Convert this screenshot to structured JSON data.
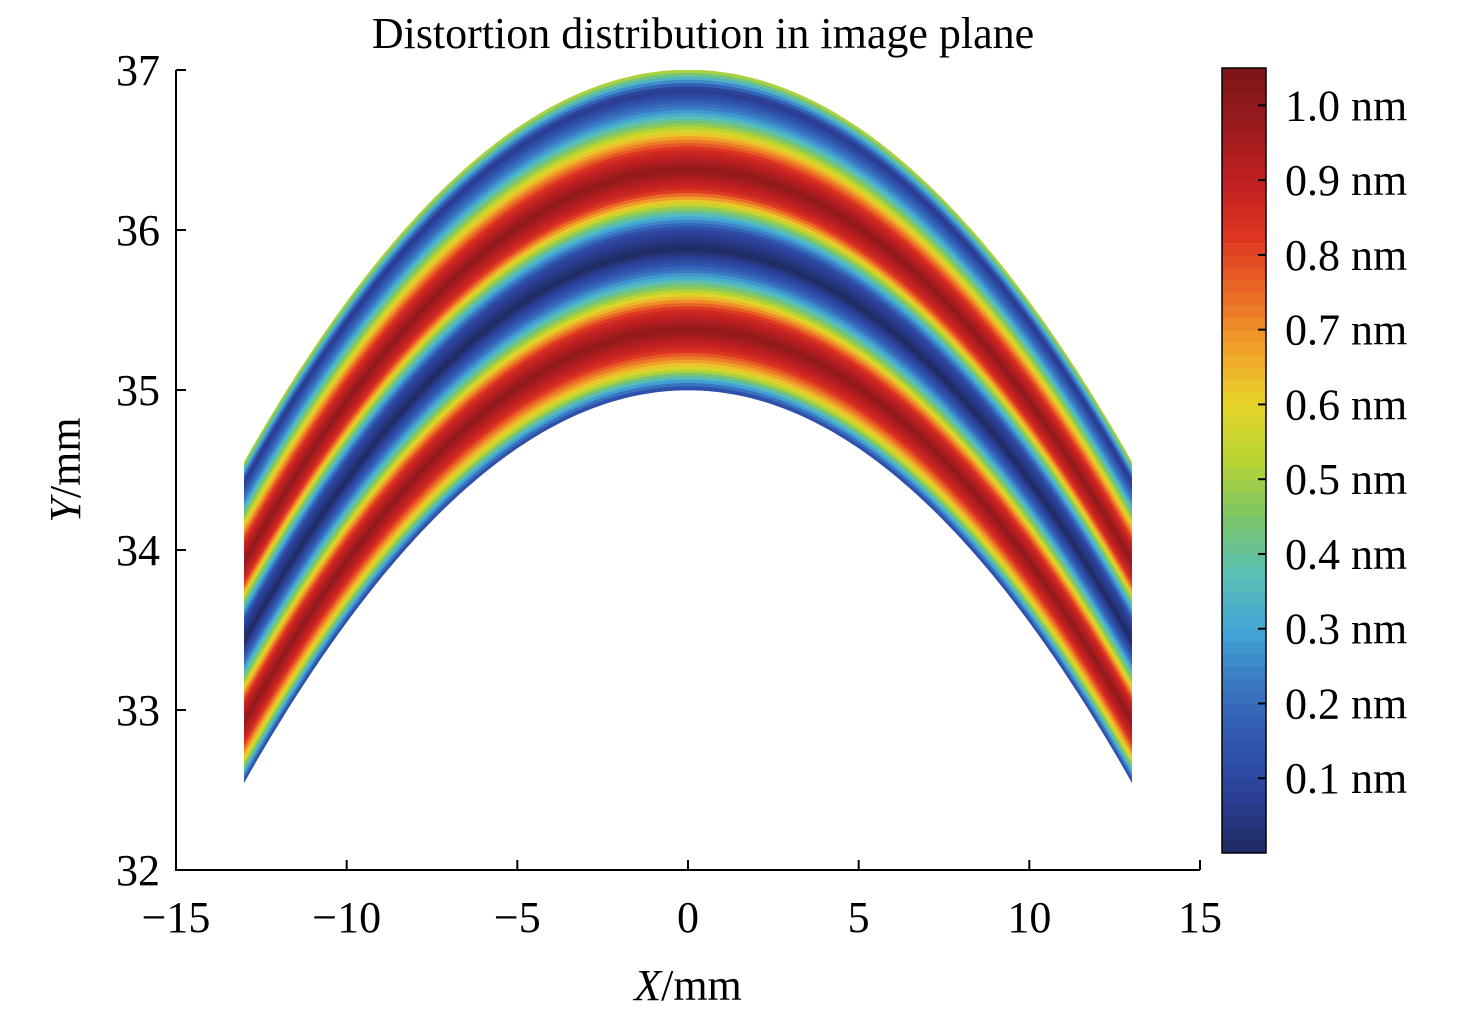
{
  "chart_data": {
    "type": "heatmap",
    "title": "Distortion distribution in image plane",
    "xlabel_var": "X",
    "xlabel_unit": "/mm",
    "ylabel_var": "Y",
    "ylabel_unit": "/mm",
    "xlim": [
      -15,
      15
    ],
    "ylim": [
      32,
      37
    ],
    "x_ticks": [
      -15,
      -10,
      -5,
      0,
      5,
      10,
      15
    ],
    "x_tick_labels": [
      "−15",
      "−10",
      "−5",
      "0",
      "5",
      "10",
      "15"
    ],
    "y_ticks": [
      32,
      33,
      34,
      35,
      36,
      37
    ],
    "y_tick_labels": [
      "32",
      "33",
      "34",
      "35",
      "36",
      "37"
    ],
    "field": {
      "x_range": [
        -13,
        13
      ],
      "outer_top": 37.0,
      "inner_top": 35.0,
      "outer_edge_at_x_limit": 34.55,
      "inner_edge_at_x_limit": 32.55,
      "band_value_profile_outer_to_inner": [
        0.55,
        0.05,
        0.25,
        0.55,
        0.85,
        1.0,
        0.85,
        0.45,
        0.1,
        0.0,
        0.2,
        0.5,
        0.85,
        1.0,
        0.85,
        0.55,
        0.1
      ]
    },
    "colorbar": {
      "range": [
        0.0,
        1.05
      ],
      "ticks": [
        1.0,
        0.9,
        0.8,
        0.7,
        0.6,
        0.5,
        0.4,
        0.3,
        0.2,
        0.1
      ],
      "tick_labels": [
        "1.0 nm",
        "0.9 nm",
        "0.8 nm",
        "0.7 nm",
        "0.6 nm",
        "0.5 nm",
        "0.4 nm",
        "0.3 nm",
        "0.2 nm",
        "0.1 nm"
      ],
      "colormap": [
        "#1f2a5f",
        "#2b3f96",
        "#3055b0",
        "#3a78c2",
        "#43a7d7",
        "#5bbfb3",
        "#7cc567",
        "#b7d433",
        "#e6d52a",
        "#f1a12a",
        "#ea6a25",
        "#de3523",
        "#c01f21",
        "#9a1b1e",
        "#7a1517"
      ]
    }
  }
}
